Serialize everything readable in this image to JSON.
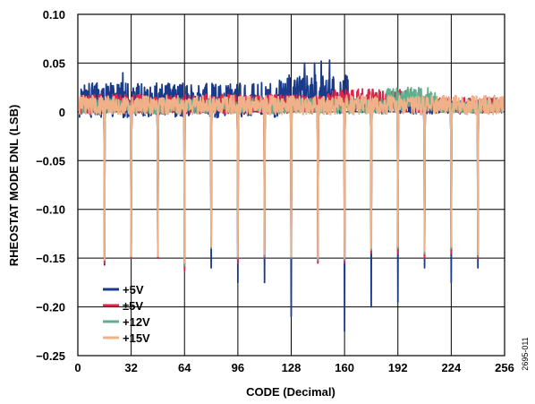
{
  "chart_data": {
    "type": "line",
    "xlabel": "CODE (Decimal)",
    "ylabel": "RHEOSTAT MODE DNL (LSB)",
    "xlim": [
      0,
      256
    ],
    "ylim": [
      -0.25,
      0.1
    ],
    "x_ticks": [
      0,
      32,
      64,
      96,
      128,
      160,
      192,
      224,
      256
    ],
    "y_ticks": [
      0.1,
      0.05,
      0,
      -0.05,
      -0.1,
      -0.15,
      -0.2,
      -0.25
    ],
    "y_tick_labels": [
      "0.10",
      "0.05",
      "0",
      "−0.05",
      "−0.10",
      "−0.15",
      "−0.20",
      "−0.25"
    ],
    "grid": true,
    "legend_position": "bottom-left",
    "figure_id": "2695-011",
    "series": [
      {
        "name": "+5V",
        "color": "#1a3a8a",
        "noise": [
          {
            "x": [
              1,
              120
            ],
            "center": 0.012,
            "amp": 0.018
          },
          {
            "x": [
              120,
              162
            ],
            "center": 0.018,
            "amp": 0.02
          },
          {
            "x": [
              162,
              256
            ],
            "center": 0.006,
            "amp": 0.008
          }
        ],
        "peaks": [
          {
            "x": 27,
            "y": 0.04
          },
          {
            "x": 128,
            "y": 0.068
          },
          {
            "x": 136,
            "y": 0.05
          },
          {
            "x": 142,
            "y": 0.05
          },
          {
            "x": 146,
            "y": 0.052
          },
          {
            "x": 151,
            "y": 0.053
          }
        ],
        "dips": [
          [
            16,
            -0.157
          ],
          [
            32,
            -0.15
          ],
          [
            48,
            -0.15
          ],
          [
            64,
            -0.16
          ],
          [
            80,
            -0.16
          ],
          [
            96,
            -0.175
          ],
          [
            112,
            -0.175
          ],
          [
            128,
            -0.21
          ],
          [
            144,
            -0.155
          ],
          [
            160,
            -0.225
          ],
          [
            176,
            -0.2
          ],
          [
            192,
            -0.195
          ],
          [
            208,
            -0.16
          ],
          [
            224,
            -0.175
          ],
          [
            240,
            -0.16
          ]
        ]
      },
      {
        "name": "±5V",
        "color": "#e0244a",
        "noise": [
          {
            "x": [
              1,
              150
            ],
            "center": 0.008,
            "amp": 0.01
          },
          {
            "x": [
              150,
              200
            ],
            "center": 0.012,
            "amp": 0.012
          },
          {
            "x": [
              200,
              256
            ],
            "center": 0.007,
            "amp": 0.008
          }
        ],
        "peaks": [],
        "dips": [
          [
            16,
            -0.155
          ],
          [
            32,
            -0.15
          ],
          [
            48,
            -0.15
          ],
          [
            64,
            -0.163
          ],
          [
            80,
            -0.14
          ],
          [
            96,
            -0.155
          ],
          [
            112,
            -0.15
          ],
          [
            128,
            -0.15
          ],
          [
            144,
            -0.155
          ],
          [
            160,
            -0.155
          ],
          [
            176,
            -0.145
          ],
          [
            192,
            -0.145
          ],
          [
            208,
            -0.15
          ],
          [
            224,
            -0.145
          ],
          [
            240,
            -0.15
          ]
        ]
      },
      {
        "name": "+12V",
        "color": "#5fae8c",
        "noise": [
          {
            "x": [
              1,
              185
            ],
            "center": 0.006,
            "amp": 0.008
          },
          {
            "x": [
              185,
              215
            ],
            "center": 0.013,
            "amp": 0.012
          },
          {
            "x": [
              215,
              256
            ],
            "center": 0.006,
            "amp": 0.007
          }
        ],
        "peaks": [
          {
            "x": 198,
            "y": 0.025
          }
        ],
        "dips": [
          [
            16,
            -0.152
          ],
          [
            32,
            -0.148
          ],
          [
            48,
            -0.148
          ],
          [
            64,
            -0.158
          ],
          [
            80,
            -0.14
          ],
          [
            96,
            -0.15
          ],
          [
            112,
            -0.148
          ],
          [
            128,
            -0.15
          ],
          [
            144,
            -0.152
          ],
          [
            160,
            -0.152
          ],
          [
            176,
            -0.142
          ],
          [
            192,
            -0.14
          ],
          [
            208,
            -0.145
          ],
          [
            224,
            -0.14
          ],
          [
            240,
            -0.148
          ]
        ]
      },
      {
        "name": "+15V",
        "color": "#f0b088",
        "noise": [
          {
            "x": [
              1,
              256
            ],
            "center": 0.007,
            "amp": 0.01
          }
        ],
        "peaks": [],
        "dips": [
          [
            16,
            -0.152
          ],
          [
            32,
            -0.148
          ],
          [
            48,
            -0.148
          ],
          [
            64,
            -0.155
          ],
          [
            80,
            -0.138
          ],
          [
            96,
            -0.148
          ],
          [
            112,
            -0.146
          ],
          [
            128,
            -0.148
          ],
          [
            144,
            -0.15
          ],
          [
            160,
            -0.15
          ],
          [
            176,
            -0.14
          ],
          [
            192,
            -0.138
          ],
          [
            208,
            -0.143
          ],
          [
            224,
            -0.138
          ],
          [
            240,
            -0.146
          ]
        ]
      }
    ]
  }
}
